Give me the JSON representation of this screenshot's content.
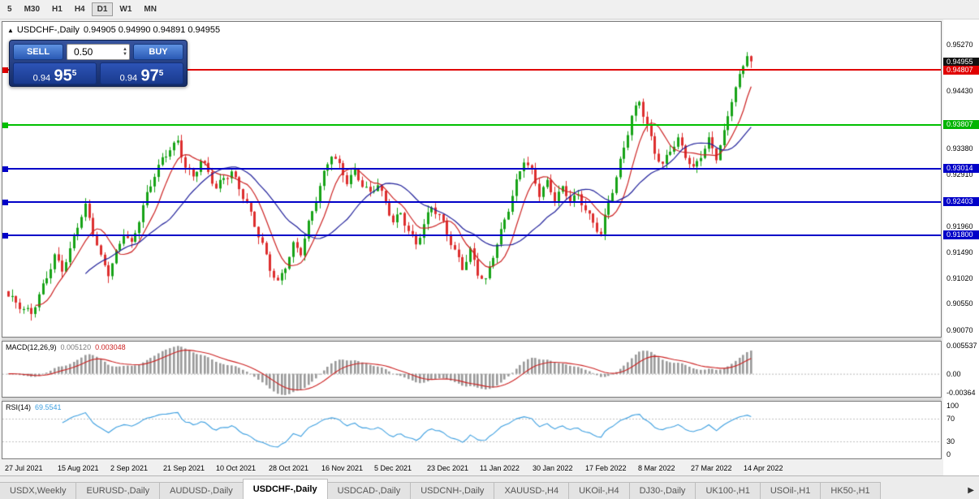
{
  "colors": {
    "up_candle": "#17a317",
    "down_candle": "#dd2e2e",
    "ma_fast": "#cc2222",
    "ma_slow": "#20209a",
    "macd_hist": "#9a9a9a",
    "macd_signal": "#cc2222",
    "rsi_line": "#3d9fe0",
    "level_red": "#e00000",
    "level_green": "#00c000",
    "level_blue": "#0000c8"
  },
  "toolbar": {
    "timeframes": [
      {
        "label": "5",
        "active": false
      },
      {
        "label": "M30",
        "active": false
      },
      {
        "label": "H1",
        "active": false
      },
      {
        "label": "H4",
        "active": false
      },
      {
        "label": "D1",
        "active": true
      },
      {
        "label": "W1",
        "active": false
      },
      {
        "label": "MN",
        "active": false
      }
    ]
  },
  "chart": {
    "collapse_icon": "▲",
    "title": "USDCHF-,Daily",
    "ohlc_text": "0.94905 0.94990 0.94891 0.94955"
  },
  "trade_panel": {
    "sell_label": "SELL",
    "buy_label": "BUY",
    "volume": "0.50",
    "spin_up_icon": "▲",
    "spin_down_icon": "▼",
    "sell_price": {
      "prefix": "0.94",
      "big": "95",
      "sup": "5"
    },
    "buy_price": {
      "prefix": "0.94",
      "big": "97",
      "sup": "5"
    }
  },
  "price_axis": {
    "ticks": [
      {
        "text": "0.95270",
        "value": 0.9527
      },
      {
        "text": "0.94430",
        "value": 0.9443
      },
      {
        "text": "0.93380",
        "value": 0.9338
      },
      {
        "text": "0.92910",
        "value": 0.9291
      },
      {
        "text": "0.91960",
        "value": 0.9196
      },
      {
        "text": "0.91490",
        "value": 0.9149
      },
      {
        "text": "0.91020",
        "value": 0.9102
      },
      {
        "text": "0.90550",
        "value": 0.9055
      },
      {
        "text": "0.90070",
        "value": 0.9007
      }
    ],
    "badges": [
      {
        "text": "0.94955",
        "value": 0.94955,
        "color": "#111111"
      },
      {
        "text": "0.94807",
        "value": 0.94807,
        "color": "#e00000"
      },
      {
        "text": "0.93807",
        "value": 0.93807,
        "color": "#00b400"
      },
      {
        "text": "0.93014",
        "value": 0.93014,
        "color": "#0000c8"
      },
      {
        "text": "0.92403",
        "value": 0.92403,
        "color": "#0000c8"
      },
      {
        "text": "0.91800",
        "value": 0.918,
        "color": "#0000c8"
      }
    ]
  },
  "macd": {
    "label": "MACD(12,26,9)",
    "value_main": "0.005120",
    "value_signal": "0.003048",
    "axis": [
      {
        "text": "0.005537",
        "value": 0.005537
      },
      {
        "text": "0.00",
        "value": 0
      },
      {
        "text": "-0.00364",
        "value": -0.00364
      }
    ]
  },
  "rsi": {
    "label": "RSI(14)",
    "value": "69.5541",
    "axis": [
      {
        "text": "100",
        "value": 100
      },
      {
        "text": "70",
        "value": 70
      },
      {
        "text": "30",
        "value": 30
      },
      {
        "text": "0",
        "value": 0
      }
    ]
  },
  "date_axis": {
    "labels": [
      "27 Jul 2021",
      "15 Aug 2021",
      "2 Sep 2021",
      "21 Sep 2021",
      "10 Oct 2021",
      "28 Oct 2021",
      "16 Nov 2021",
      "5 Dec 2021",
      "23 Dec 2021",
      "11 Jan 2022",
      "30 Jan 2022",
      "17 Feb 2022",
      "8 Mar 2022",
      "27 Mar 2022",
      "14 Apr 2022"
    ]
  },
  "tabs": {
    "items": [
      "USDX,Weekly",
      "EURUSD-,Daily",
      "AUDUSD-,Daily",
      "USDCHF-,Daily",
      "USDCAD-,Daily",
      "USDCNH-,Daily",
      "XAUUSD-,H4",
      "UKOil-,H4",
      "DJ30-,Daily",
      "UK100-,H1",
      "USOil-,H1",
      "HK50-,H1"
    ],
    "active_index": 3,
    "scroll_right_icon": "▶"
  },
  "chart_data": {
    "type": "candlestick",
    "symbol": "USDCHF-",
    "timeframe": "Daily",
    "ohlc": {
      "open": 0.94905,
      "high": 0.9499,
      "low": 0.94891,
      "close": 0.94955
    },
    "y_range": [
      0.8995,
      0.9568
    ],
    "levels": [
      {
        "value": 0.94807,
        "color": "#e00000"
      },
      {
        "value": 0.93807,
        "color": "#00c000"
      },
      {
        "value": 0.93014,
        "color": "#0000c8"
      },
      {
        "value": 0.92403,
        "color": "#0000c8"
      },
      {
        "value": 0.918,
        "color": "#0000c8"
      }
    ],
    "price_path": [
      [
        0,
        0.9068
      ],
      [
        2,
        0.9055
      ],
      [
        4,
        0.904
      ],
      [
        6,
        0.9036
      ],
      [
        8,
        0.907
      ],
      [
        10,
        0.9108
      ],
      [
        12,
        0.9145
      ],
      [
        14,
        0.912
      ],
      [
        16,
        0.915
      ],
      [
        18,
        0.9195
      ],
      [
        20,
        0.9228
      ],
      [
        22,
        0.9185
      ],
      [
        24,
        0.914
      ],
      [
        26,
        0.9115
      ],
      [
        28,
        0.915
      ],
      [
        30,
        0.9185
      ],
      [
        32,
        0.916
      ],
      [
        34,
        0.9205
      ],
      [
        36,
        0.925
      ],
      [
        38,
        0.929
      ],
      [
        40,
        0.932
      ],
      [
        42,
        0.9342
      ],
      [
        44,
        0.9352
      ],
      [
        46,
        0.9305
      ],
      [
        48,
        0.9282
      ],
      [
        50,
        0.9312
      ],
      [
        52,
        0.9292
      ],
      [
        54,
        0.9265
      ],
      [
        56,
        0.9288
      ],
      [
        58,
        0.9298
      ],
      [
        60,
        0.9268
      ],
      [
        62,
        0.9235
      ],
      [
        64,
        0.9195
      ],
      [
        66,
        0.9158
      ],
      [
        68,
        0.9118
      ],
      [
        70,
        0.9094
      ],
      [
        72,
        0.9128
      ],
      [
        74,
        0.9165
      ],
      [
        76,
        0.915
      ],
      [
        78,
        0.9198
      ],
      [
        80,
        0.9242
      ],
      [
        82,
        0.9288
      ],
      [
        84,
        0.9328
      ],
      [
        86,
        0.9308
      ],
      [
        88,
        0.9282
      ],
      [
        90,
        0.9298
      ],
      [
        92,
        0.9272
      ],
      [
        94,
        0.9252
      ],
      [
        96,
        0.927
      ],
      [
        98,
        0.9234
      ],
      [
        100,
        0.9206
      ],
      [
        102,
        0.9222
      ],
      [
        104,
        0.9192
      ],
      [
        106,
        0.9165
      ],
      [
        108,
        0.9198
      ],
      [
        110,
        0.9228
      ],
      [
        112,
        0.9212
      ],
      [
        114,
        0.9182
      ],
      [
        116,
        0.9152
      ],
      [
        118,
        0.9124
      ],
      [
        120,
        0.9155
      ],
      [
        122,
        0.9112
      ],
      [
        124,
        0.9094
      ],
      [
        126,
        0.914
      ],
      [
        128,
        0.9182
      ],
      [
        130,
        0.9228
      ],
      [
        132,
        0.9278
      ],
      [
        134,
        0.9322
      ],
      [
        136,
        0.9298
      ],
      [
        138,
        0.9255
      ],
      [
        140,
        0.9272
      ],
      [
        142,
        0.9242
      ],
      [
        144,
        0.9262
      ],
      [
        146,
        0.9246
      ],
      [
        148,
        0.9254
      ],
      [
        150,
        0.9232
      ],
      [
        152,
        0.9202
      ],
      [
        154,
        0.9182
      ],
      [
        156,
        0.9235
      ],
      [
        158,
        0.9282
      ],
      [
        160,
        0.9338
      ],
      [
        162,
        0.9398
      ],
      [
        164,
        0.9428
      ],
      [
        166,
        0.9382
      ],
      [
        168,
        0.9332
      ],
      [
        170,
        0.9304
      ],
      [
        172,
        0.9332
      ],
      [
        174,
        0.935
      ],
      [
        176,
        0.9325
      ],
      [
        178,
        0.9302
      ],
      [
        180,
        0.933
      ],
      [
        182,
        0.9355
      ],
      [
        184,
        0.9322
      ],
      [
        186,
        0.9362
      ],
      [
        188,
        0.9424
      ],
      [
        190,
        0.9465
      ],
      [
        192,
        0.9512
      ],
      [
        193,
        0.9496
      ]
    ],
    "moving_averages": [
      {
        "period": 8,
        "color": "#cc2222"
      },
      {
        "period": 21,
        "color": "#20209a"
      }
    ],
    "indicators": {
      "macd": {
        "params": "12,26,9",
        "main": 0.00512,
        "signal": 0.003048,
        "range": [
          -0.0045,
          0.0063
        ]
      },
      "rsi": {
        "period": 14,
        "value": 69.5541,
        "levels": [
          70,
          30
        ]
      }
    }
  }
}
